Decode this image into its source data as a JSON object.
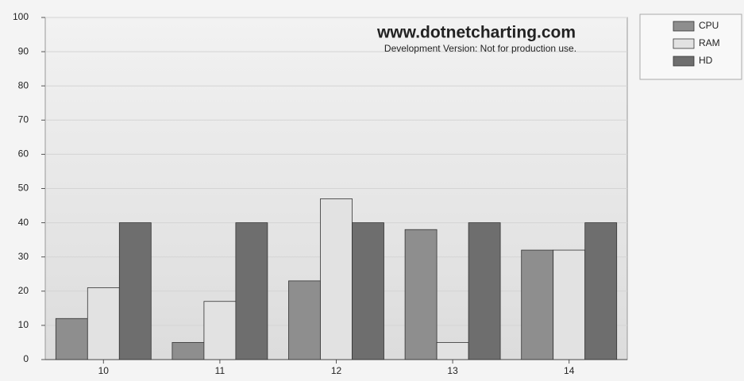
{
  "chart_data": {
    "type": "bar",
    "annotations": [
      "www.dotnetcharting.com",
      "Development Version: Not for production use."
    ],
    "categories": [
      "10",
      "11",
      "12",
      "13",
      "14"
    ],
    "series": [
      {
        "name": "CPU",
        "color": "#8e8e8e",
        "values": [
          12,
          5,
          23,
          38,
          32
        ]
      },
      {
        "name": "RAM",
        "color": "#e2e2e2",
        "values": [
          21,
          17,
          47,
          5,
          32
        ]
      },
      {
        "name": "HD",
        "color": "#6e6e6e",
        "values": [
          40,
          40,
          40,
          40,
          40
        ]
      }
    ],
    "ylim": [
      0,
      100
    ],
    "yticks": [
      0,
      10,
      20,
      30,
      40,
      50,
      60,
      70,
      80,
      90,
      100
    ],
    "grid": true,
    "legend": "right"
  }
}
